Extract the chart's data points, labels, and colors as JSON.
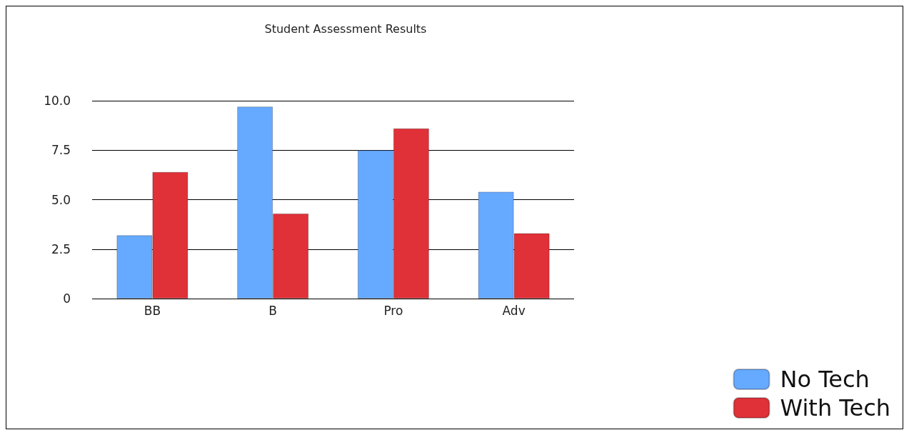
{
  "chart_data": {
    "type": "bar",
    "title": "Student Assessment Results",
    "categories": [
      "BB",
      "B",
      "Pro",
      "Adv"
    ],
    "series": [
      {
        "name": "No Tech",
        "color": "#66aaff",
        "values": [
          3.2,
          9.7,
          7.5,
          5.4
        ]
      },
      {
        "name": "With Tech",
        "color": "#e03038",
        "values": [
          6.4,
          4.3,
          8.6,
          3.3
        ]
      }
    ],
    "ylim": [
      0,
      10
    ],
    "yticks": [
      {
        "value": 0,
        "label": "0"
      },
      {
        "value": 2.5,
        "label": "2.5"
      },
      {
        "value": 5,
        "label": "5.0"
      },
      {
        "value": 7.5,
        "label": "7.5"
      },
      {
        "value": 10,
        "label": "10.0"
      }
    ],
    "grid": "y",
    "legend": "bottom right"
  }
}
